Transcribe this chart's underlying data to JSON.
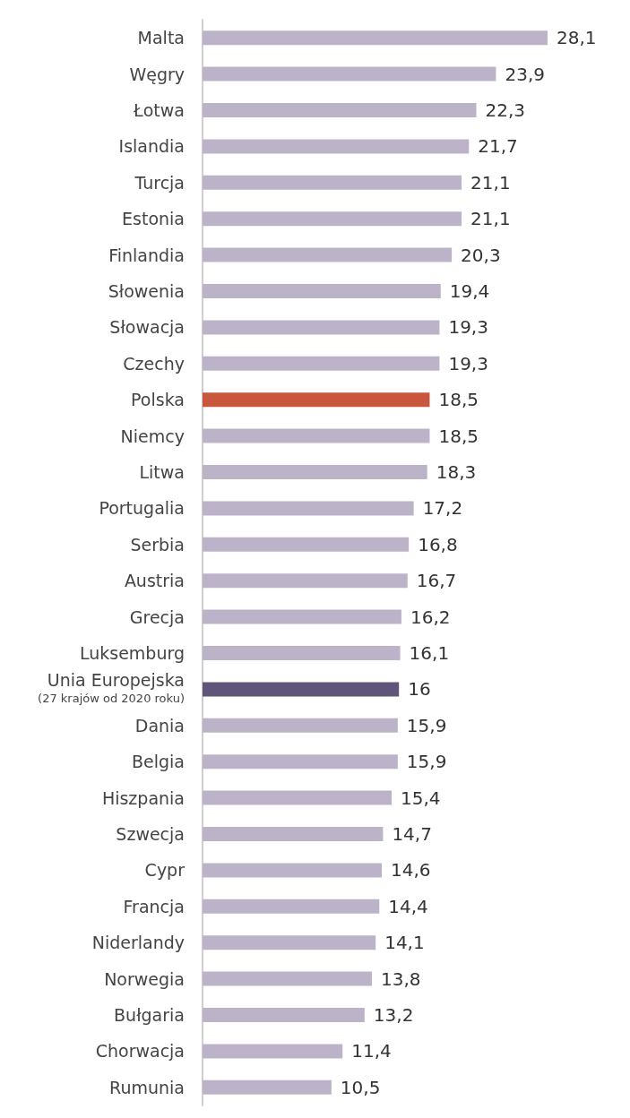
{
  "chart_data": {
    "type": "bar",
    "orientation": "horizontal",
    "categories": [
      "Malta",
      "Węgry",
      "Łotwa",
      "Islandia",
      "Turcja",
      "Estonia",
      "Finlandia",
      "Słowenia",
      "Słowacja",
      "Czechy",
      "Polska",
      "Niemcy",
      "Litwa",
      "Portugalia",
      "Serbia",
      "Austria",
      "Grecja",
      "Luksemburg",
      "Unia Europejska\n(27 krajów od 2020 roku)",
      "Dania",
      "Belgia",
      "Hiszpania",
      "Szwecja",
      "Cypr",
      "Francja",
      "Niderlandy",
      "Norwegia",
      "Bułgaria",
      "Chorwacja",
      "Rumunia"
    ],
    "values": [
      28.1,
      23.9,
      22.3,
      21.7,
      21.1,
      21.1,
      20.3,
      19.4,
      19.3,
      19.3,
      18.5,
      18.5,
      18.3,
      17.2,
      16.8,
      16.7,
      16.2,
      16.1,
      16,
      15.9,
      15.9,
      15.4,
      14.7,
      14.6,
      14.4,
      14.1,
      13.8,
      13.2,
      11.4,
      10.5
    ],
    "value_labels": [
      "28,1",
      "23,9",
      "22,3",
      "21,7",
      "21,1",
      "21,1",
      "20,3",
      "19,4",
      "19,3",
      "19,3",
      "18,5",
      "18,5",
      "18,3",
      "17,2",
      "16,8",
      "16,7",
      "16,2",
      "16,1",
      "16",
      "15,9",
      "15,9",
      "15,4",
      "14,7",
      "14,6",
      "14,4",
      "14,1",
      "13,8",
      "13,2",
      "11,4",
      "10,5"
    ],
    "colors": [
      "#bdb3c8",
      "#bdb3c8",
      "#bdb3c8",
      "#bdb3c8",
      "#bdb3c8",
      "#bdb3c8",
      "#bdb3c8",
      "#bdb3c8",
      "#bdb3c8",
      "#bdb3c8",
      "#c8573d",
      "#bdb3c8",
      "#bdb3c8",
      "#bdb3c8",
      "#bdb3c8",
      "#bdb3c8",
      "#bdb3c8",
      "#bdb3c8",
      "#5f5479",
      "#bdb3c8",
      "#bdb3c8",
      "#bdb3c8",
      "#bdb3c8",
      "#bdb3c8",
      "#bdb3c8",
      "#bdb3c8",
      "#bdb3c8",
      "#bdb3c8",
      "#bdb3c8",
      "#bdb3c8"
    ],
    "grid": false
  }
}
